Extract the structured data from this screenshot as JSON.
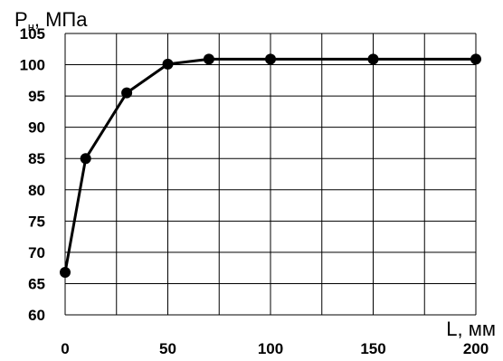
{
  "chart_data": {
    "type": "line",
    "title": "",
    "ylabel_main": "P",
    "ylabel_sub": "н",
    "ylabel_unit": ", МПа",
    "xlabel": "L, мм",
    "x": [
      0,
      10,
      30,
      50,
      70,
      100,
      150,
      200
    ],
    "series": [
      {
        "values": [
          66.8,
          85,
          95.5,
          100.1,
          100.9,
          100.9,
          100.9,
          100.9
        ]
      }
    ],
    "xlim": [
      0,
      200
    ],
    "ylim": [
      60,
      105
    ],
    "x_ticks": [
      0,
      50,
      100,
      150,
      200
    ],
    "x_grid": [
      0,
      25,
      50,
      75,
      100,
      125,
      150,
      175,
      200
    ],
    "y_ticks": [
      60,
      65,
      70,
      75,
      80,
      85,
      90,
      95,
      100,
      105
    ],
    "grid": true,
    "line_color": "#000000",
    "grid_color": "#000000"
  }
}
